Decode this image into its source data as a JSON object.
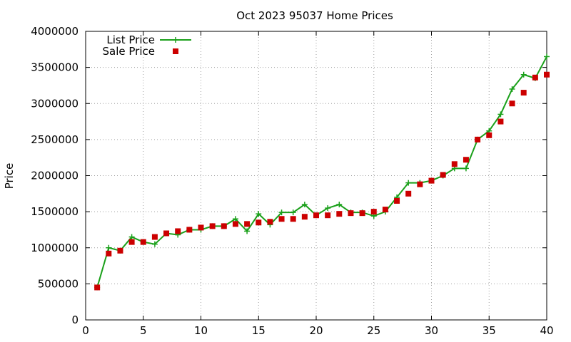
{
  "chart_data": {
    "type": "line",
    "title": "Oct 2023 95037 Home Prices",
    "xlabel": "",
    "ylabel": "Price",
    "xlim": [
      0,
      40
    ],
    "ylim": [
      0,
      4000000
    ],
    "xticks": [
      0,
      5,
      10,
      15,
      20,
      25,
      30,
      35,
      40
    ],
    "yticks": [
      0,
      500000,
      1000000,
      1500000,
      2000000,
      2500000,
      3000000,
      3500000,
      4000000
    ],
    "grid": true,
    "legend_position": "top-left",
    "series": [
      {
        "name": "List Price",
        "style": "line-points",
        "color": "#1aa01a",
        "x": [
          1,
          2,
          3,
          4,
          5,
          6,
          7,
          8,
          9,
          10,
          11,
          12,
          13,
          14,
          15,
          16,
          17,
          18,
          19,
          20,
          21,
          22,
          23,
          24,
          25,
          26,
          27,
          28,
          29,
          30,
          31,
          32,
          33,
          34,
          35,
          36,
          37,
          38,
          39,
          40
        ],
        "values": [
          450000,
          1000000,
          960000,
          1150000,
          1080000,
          1050000,
          1200000,
          1180000,
          1250000,
          1250000,
          1300000,
          1300000,
          1400000,
          1230000,
          1470000,
          1320000,
          1490000,
          1490000,
          1600000,
          1450000,
          1550000,
          1600000,
          1490000,
          1490000,
          1440000,
          1500000,
          1700000,
          1900000,
          1900000,
          1930000,
          2000000,
          2100000,
          2100000,
          2500000,
          2620000,
          2850000,
          3200000,
          3400000,
          3350000,
          3650000
        ]
      },
      {
        "name": "Sale Price",
        "style": "points",
        "color": "#cc0000",
        "x": [
          1,
          2,
          3,
          4,
          5,
          6,
          7,
          8,
          9,
          10,
          11,
          12,
          13,
          14,
          15,
          16,
          17,
          18,
          19,
          20,
          21,
          22,
          23,
          24,
          25,
          26,
          27,
          28,
          29,
          30,
          31,
          32,
          33,
          34,
          35,
          36,
          37,
          38,
          39,
          40
        ],
        "values": [
          450000,
          920000,
          960000,
          1080000,
          1080000,
          1150000,
          1200000,
          1230000,
          1250000,
          1280000,
          1300000,
          1300000,
          1330000,
          1330000,
          1350000,
          1360000,
          1400000,
          1400000,
          1430000,
          1450000,
          1450000,
          1470000,
          1480000,
          1480000,
          1500000,
          1530000,
          1650000,
          1750000,
          1880000,
          1930000,
          2010000,
          2160000,
          2220000,
          2500000,
          2560000,
          2750000,
          3000000,
          3150000,
          3360000,
          3400000
        ]
      }
    ]
  }
}
